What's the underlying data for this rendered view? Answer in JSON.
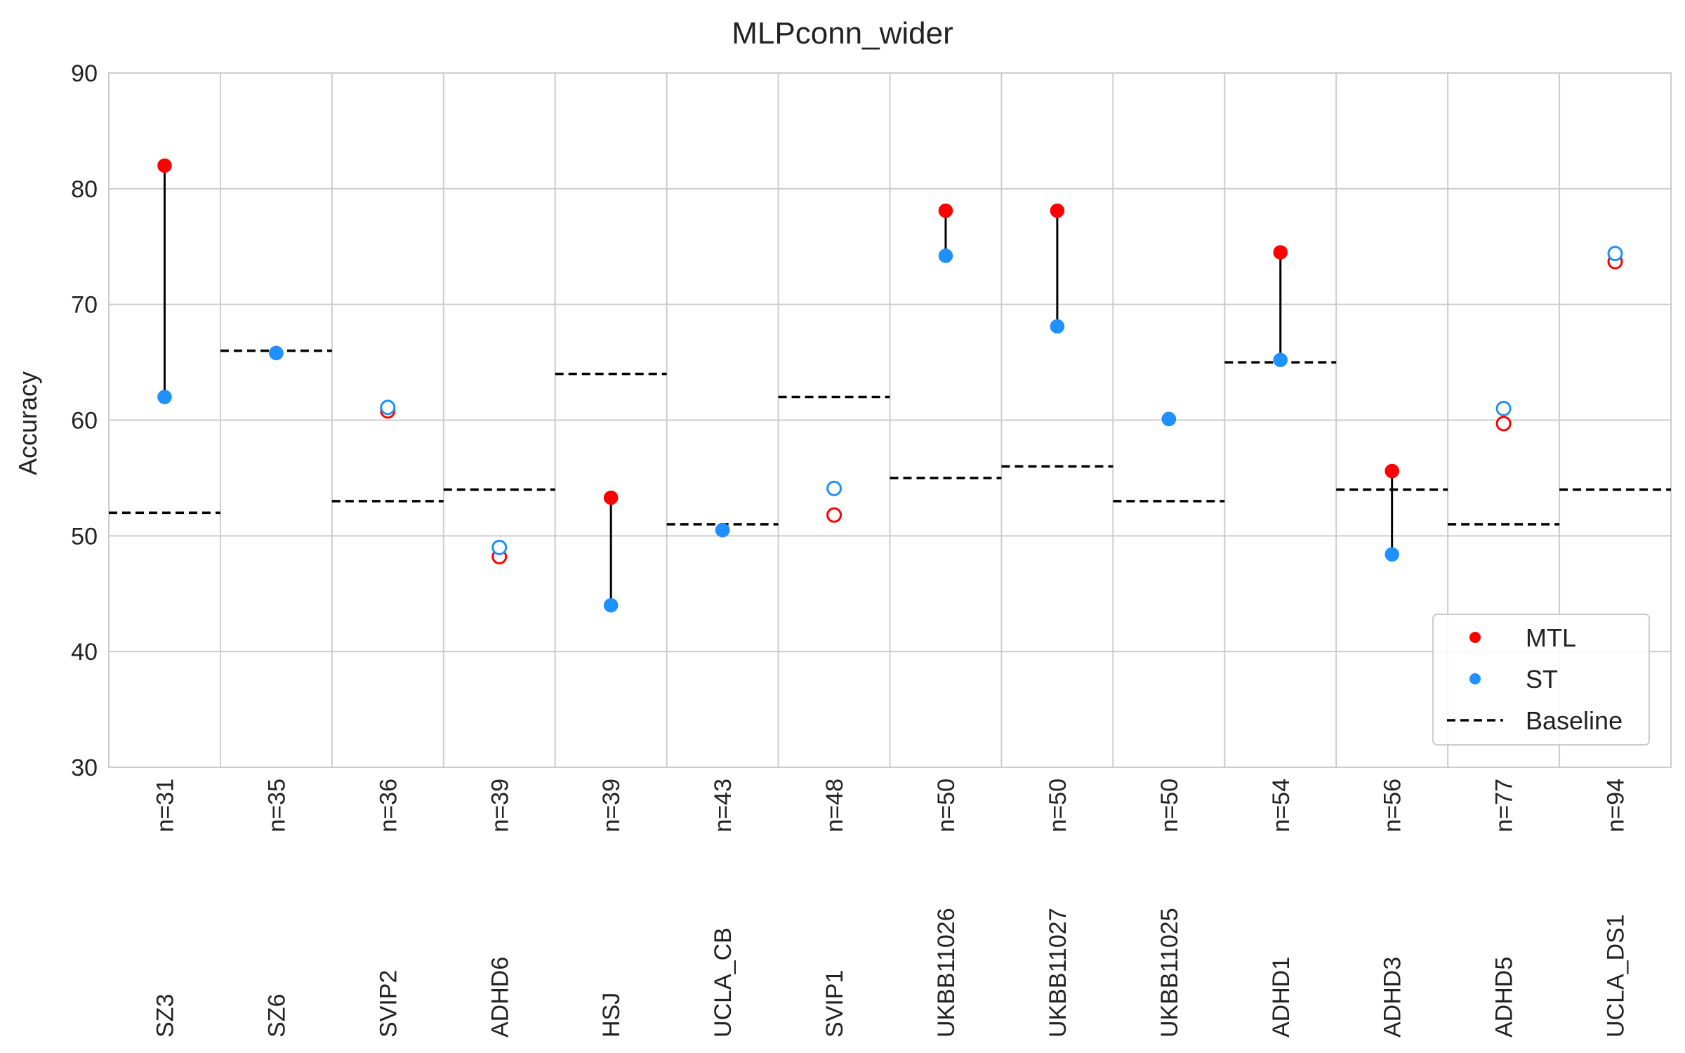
{
  "chart_data": {
    "type": "scatter",
    "title": "MLPconn_wider",
    "xlabel": "",
    "ylabel": "Accuracy",
    "ylim": [
      30,
      90
    ],
    "yticks": [
      30,
      40,
      50,
      60,
      70,
      80,
      90
    ],
    "grid": true,
    "legend_position": "lower-right",
    "categories": [
      "SZ3",
      "SZ6",
      "SVIP2",
      "ADHD6",
      "HSJ",
      "UCLA_CB",
      "SVIP1",
      "UKBB11026",
      "UKBB11027",
      "UKBB11025",
      "ADHD1",
      "ADHD3",
      "ADHD5",
      "UCLA_DS1"
    ],
    "sample_labels": [
      "n=31",
      "n=35",
      "n=36",
      "n=39",
      "n=39",
      "n=43",
      "n=48",
      "n=50",
      "n=50",
      "n=50",
      "n=54",
      "n=56",
      "n=77",
      "n=94"
    ],
    "series": [
      {
        "name": "MTL",
        "color": "#ff0000",
        "marker": "circle",
        "values": [
          82.0,
          65.8,
          60.8,
          48.2,
          53.3,
          50.5,
          51.8,
          78.1,
          78.1,
          60.1,
          74.5,
          55.6,
          59.7,
          73.7
        ],
        "filled": [
          true,
          true,
          false,
          false,
          true,
          true,
          false,
          true,
          true,
          true,
          true,
          true,
          false,
          false
        ]
      },
      {
        "name": "ST",
        "color": "#1e90ff",
        "marker": "circle",
        "values": [
          62.0,
          65.8,
          61.1,
          49.0,
          44.0,
          50.5,
          54.1,
          74.2,
          68.1,
          60.1,
          65.2,
          48.4,
          61.0,
          74.4
        ],
        "filled": [
          true,
          true,
          false,
          false,
          true,
          true,
          false,
          true,
          true,
          true,
          true,
          true,
          false,
          false
        ]
      },
      {
        "name": "Baseline",
        "color": "#000000",
        "style": "dashed",
        "values": [
          52,
          66,
          53,
          54,
          64,
          51,
          62,
          55,
          56,
          53,
          65,
          54,
          51,
          54
        ]
      }
    ],
    "connector_color": "#000000"
  }
}
